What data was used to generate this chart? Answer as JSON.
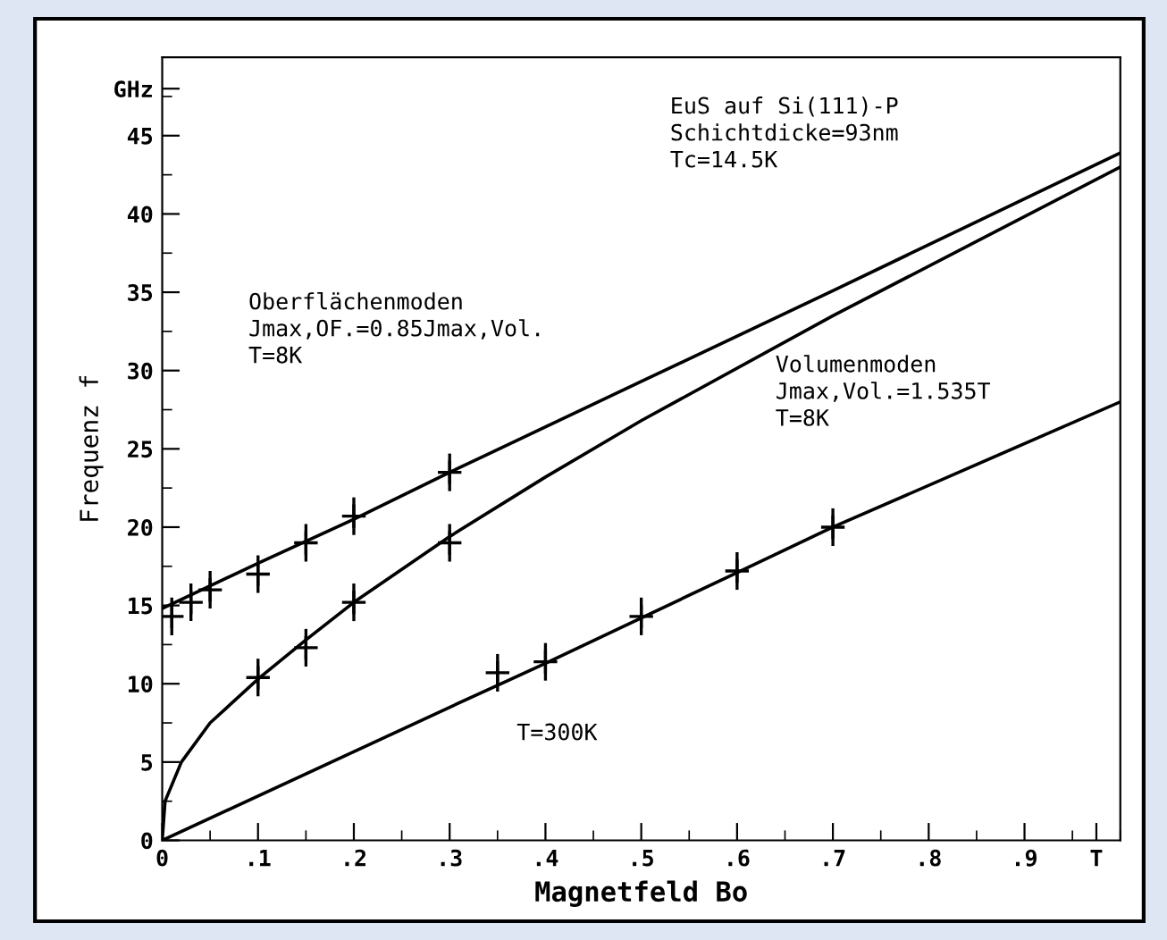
{
  "chart_data": {
    "type": "line",
    "xlabel": "Magnetfeld Bo",
    "ylabel": "Frequenz f",
    "xlim": [
      0,
      1.0
    ],
    "ylim": [
      0,
      50
    ],
    "xticks": [
      {
        "value": 0,
        "label": "0"
      },
      {
        "value": 0.1,
        "label": ".1"
      },
      {
        "value": 0.2,
        "label": ".2"
      },
      {
        "value": 0.3,
        "label": ".3"
      },
      {
        "value": 0.4,
        "label": ".4"
      },
      {
        "value": 0.5,
        "label": ".5"
      },
      {
        "value": 0.6,
        "label": ".6"
      },
      {
        "value": 0.7,
        "label": ".7"
      },
      {
        "value": 0.8,
        "label": ".8"
      },
      {
        "value": 0.9,
        "label": ".9"
      },
      {
        "value": 0.975,
        "label": "T"
      }
    ],
    "yticks": [
      0,
      5,
      10,
      15,
      20,
      25,
      30,
      35,
      40,
      45,
      {
        "value": 48,
        "label": "GHz"
      }
    ],
    "grid": false,
    "line_style": "solid",
    "series": [
      {
        "color": "#000000",
        "x": [
          0,
          0.1,
          0.2,
          0.3,
          0.5,
          0.7,
          1.0
        ],
        "values": [
          14.8,
          17.7,
          20.5,
          23.5,
          29.3,
          35.1,
          43.9
        ]
      },
      {
        "color": "#000000",
        "x": [
          0,
          0.003,
          0.02,
          0.05,
          0.1,
          0.15,
          0.2,
          0.3,
          0.4,
          0.5,
          0.7,
          1.0
        ],
        "values": [
          0,
          2.5,
          5,
          7.5,
          10.3,
          12.8,
          15.2,
          19.4,
          23.2,
          26.8,
          33.5,
          43.0
        ]
      },
      {
        "color": "#000000",
        "x": [
          0,
          0.3,
          0.4,
          0.5,
          0.6,
          0.7,
          1.0
        ],
        "values": [
          0,
          8.5,
          11.3,
          14.2,
          17.1,
          20.0,
          28.0
        ]
      },
      {
        "type": "scatter",
        "color": "#000000",
        "marker": "cross",
        "x": [
          0.01,
          0.03,
          0.05,
          0.1,
          0.15,
          0.2,
          0.3
        ],
        "values": [
          14.3,
          15.2,
          16.0,
          17.0,
          19.0,
          20.7,
          23.5
        ],
        "errors": [
          1.2,
          1.2,
          1.2,
          1.2,
          1.2,
          1.2,
          1.2
        ]
      },
      {
        "type": "scatter",
        "color": "#000000",
        "marker": "cross",
        "x": [
          0.1,
          0.15,
          0.2,
          0.3
        ],
        "values": [
          10.4,
          12.3,
          15.2,
          19.0
        ],
        "errors": [
          1.2,
          1.2,
          1.2,
          1.2
        ]
      },
      {
        "type": "scatter",
        "color": "#000000",
        "marker": "cross",
        "x": [
          0.35,
          0.4,
          0.5,
          0.6,
          0.7
        ],
        "values": [
          10.7,
          11.4,
          14.3,
          17.2,
          20.0
        ],
        "errors": [
          1.2,
          1.2,
          1.2,
          1.2,
          1.2
        ]
      }
    ],
    "annotations": [
      "EuS auf Si(111)-P\nSchichtdicke=93nm\nTc=14.5K",
      "Oberflächenmoden\nJmax,OF.=0.85Jmax,Vol.\nT=8K",
      "Volumenmoden\nJmax,Vol.=1.535T\nT=8K",
      "T=300K"
    ]
  }
}
